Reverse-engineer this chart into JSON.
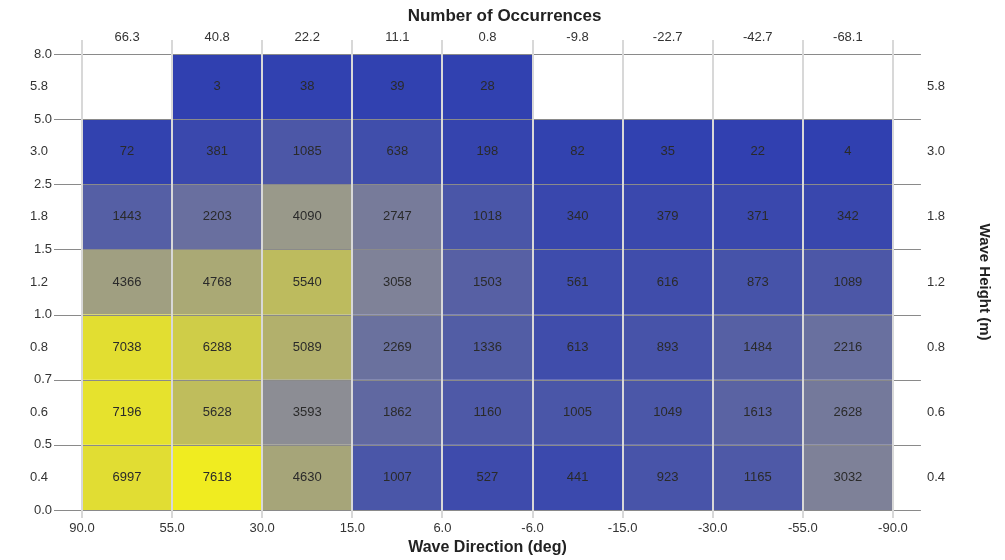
{
  "chart_data": {
    "type": "heatmap",
    "title": "Number of Occurrences",
    "xlabel": "Wave Direction (deg)",
    "ylabel": "Wave Height (m)",
    "categories": [
      "66.3",
      "40.8",
      "22.2",
      "11.1",
      "0.8",
      "-9.8",
      "-22.7",
      "-42.7",
      "-68.1"
    ],
    "y_categories": [
      "5.8",
      "3.0",
      "1.8",
      "1.2",
      "0.8",
      "0.6",
      "0.4"
    ],
    "y2_categories": [
      "5.8",
      "3.0",
      "1.8",
      "1.2",
      "0.8",
      "0.6",
      "0.4"
    ],
    "cells": [
      [
        null,
        3,
        38,
        39,
        28,
        null,
        null,
        null,
        null
      ],
      [
        72,
        381,
        1085,
        638,
        198,
        82,
        35,
        22,
        4
      ],
      [
        1443,
        2203,
        4090,
        2747,
        1018,
        340,
        379,
        371,
        342
      ],
      [
        4366,
        4768,
        5540,
        3058,
        1503,
        561,
        616,
        873,
        1089
      ],
      [
        7038,
        6288,
        5089,
        2269,
        1336,
        613,
        893,
        1484,
        2216
      ],
      [
        7196,
        5628,
        3593,
        1862,
        1160,
        1005,
        1049,
        1613,
        2628
      ],
      [
        6997,
        7618,
        4630,
        1007,
        527,
        441,
        923,
        1165,
        3032
      ]
    ],
    "data_labels": true,
    "annotations": [
      "90.0",
      "55.0",
      "30.0",
      "15.0",
      "6.0",
      "-6.0",
      "-15.0",
      "-30.0",
      "-55.0",
      "-90.0",
      "8.0",
      "5.0",
      "2.5",
      "1.5",
      "1.0",
      "0.7",
      "0.5",
      "0.0"
    ]
  }
}
